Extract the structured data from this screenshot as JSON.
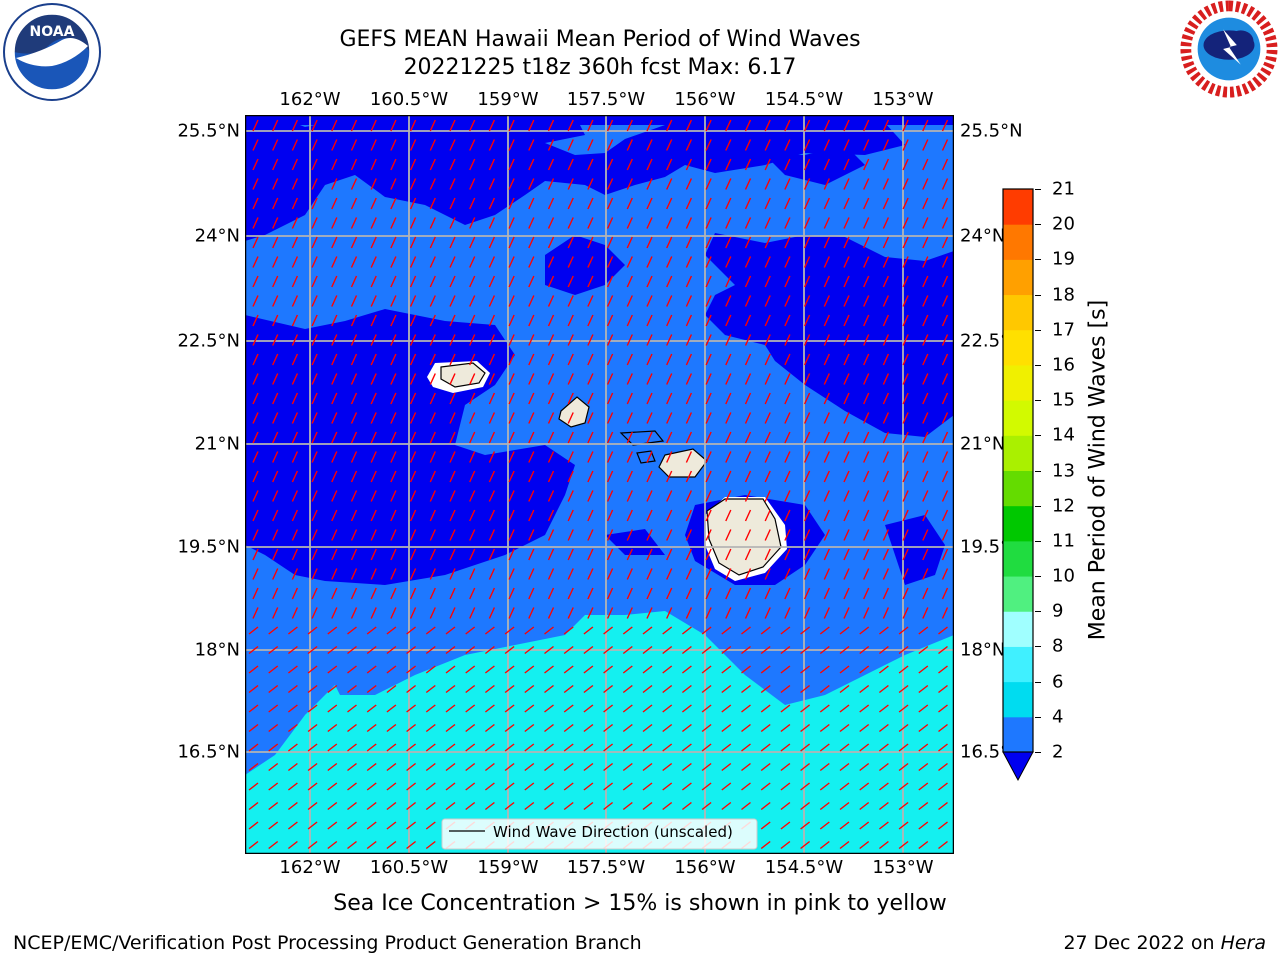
{
  "header": {
    "title_line1": "GEFS MEAN Hawaii Mean Period of Wind Waves",
    "title_line2": "20221225 t18z 360h fcst   Max: 6.17"
  },
  "logos": {
    "left": "NOAA",
    "right": "NATIONAL WEATHER SERVICE"
  },
  "map": {
    "lon_ticks": [
      "162°W",
      "160.5°W",
      "159°W",
      "157.5°W",
      "156°W",
      "154.5°W",
      "153°W"
    ],
    "lat_ticks": [
      "25.5°N",
      "24°N",
      "22.5°N",
      "21°N",
      "19.5°N",
      "18°N",
      "16.5°N"
    ],
    "legend_label": "Wind Wave Direction (unscaled)",
    "field_colors": {
      "below_2": "#0000f0",
      "2_4": "#1e78ff",
      "4_6": "#14f0f0",
      "land": "#eeeadb",
      "arrows": "#ff0000",
      "grid": "#b0b0b0"
    }
  },
  "colorbar": {
    "label": "Mean Period of Wind Waves [s]",
    "ticks": [
      "2",
      "4",
      "6",
      "8",
      "9",
      "10",
      "11",
      "12",
      "13",
      "14",
      "15",
      "16",
      "17",
      "18",
      "19",
      "20",
      "21"
    ],
    "colors": [
      "#1e78ff",
      "#00dcf0",
      "#40f0ff",
      "#a0ffff",
      "#50f080",
      "#20dc40",
      "#00c800",
      "#64dc00",
      "#aaf000",
      "#d2fa00",
      "#f0f000",
      "#ffe000",
      "#ffc800",
      "#ffa000",
      "#ff7800",
      "#ff3c00",
      "#ff0000"
    ],
    "under_color": "#0000f0"
  },
  "caption": "Sea Ice Concentration > 15% is shown in pink to yellow",
  "footer": {
    "left": "NCEP/EMC/Verification Post Processing Product Generation Branch",
    "right_date": "27 Dec 2022 on ",
    "right_host": "Hera"
  }
}
